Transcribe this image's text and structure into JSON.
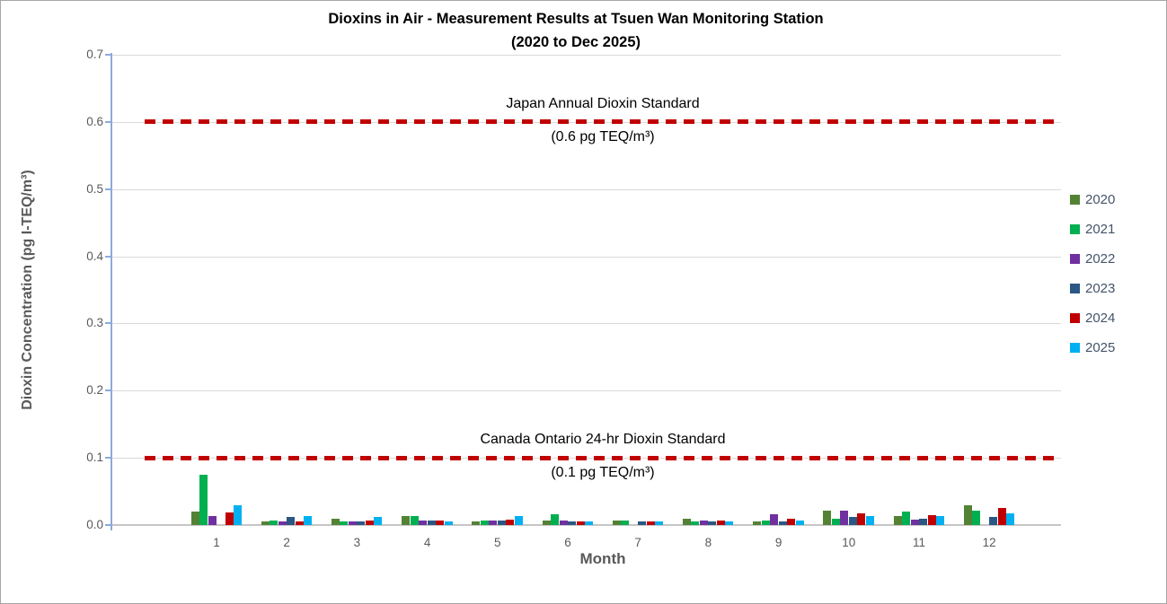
{
  "chart_data": {
    "type": "bar",
    "title_line1": "Dioxins in Air - Measurement Results at Tsuen Wan Monitoring Station",
    "title_line2": "(2020 to Dec 2025)",
    "xlabel": "Month",
    "ylabel": "Dioxin Concentration (pg I-TEQ/m³)",
    "ylim": [
      0,
      0.7
    ],
    "ytick_step": 0.1,
    "ytick_labels": [
      "0.0",
      "0.1",
      "0.2",
      "0.3",
      "0.4",
      "0.5",
      "0.6",
      "0.7"
    ],
    "grid": true,
    "legend_position": "right",
    "categories": [
      "1",
      "2",
      "3",
      "4",
      "5",
      "6",
      "7",
      "8",
      "9",
      "10",
      "11",
      "12"
    ],
    "series": [
      {
        "name": "2020",
        "color": "#548235",
        "values": [
          0.02,
          0.006,
          0.01,
          0.013,
          0.006,
          0.007,
          0.007,
          0.009,
          0.006,
          0.022,
          0.014,
          0.03
        ]
      },
      {
        "name": "2021",
        "color": "#00b050",
        "values": [
          0.075,
          0.007,
          0.006,
          0.013,
          0.007,
          0.016,
          0.007,
          0.006,
          0.007,
          0.01,
          0.02,
          0.021
        ]
      },
      {
        "name": "2022",
        "color": "#7030a0",
        "values": [
          0.013,
          0.005,
          0.006,
          0.007,
          0.007,
          0.007,
          null,
          0.007,
          0.016,
          0.021,
          0.008,
          null
        ]
      },
      {
        "name": "2023",
        "color": "#2a5784",
        "values": [
          null,
          0.012,
          0.006,
          0.007,
          0.007,
          0.006,
          0.006,
          0.005,
          0.005,
          0.012,
          0.01,
          0.012
        ]
      },
      {
        "name": "2024",
        "color": "#c00000",
        "values": [
          0.019,
          0.006,
          0.007,
          0.007,
          0.008,
          0.006,
          0.006,
          0.007,
          0.009,
          0.018,
          0.015,
          0.025
        ]
      },
      {
        "name": "2025",
        "color": "#00b0f0",
        "values": [
          0.029,
          0.014,
          0.012,
          0.005,
          0.013,
          0.006,
          0.006,
          0.005,
          0.007,
          0.013,
          0.013,
          0.017
        ]
      }
    ],
    "reference_lines": [
      {
        "value": 0.6,
        "color": "#c00000",
        "label_above": "Japan Annual Dioxin Standard",
        "label_below": "(0.6 pg TEQ/m³)"
      },
      {
        "value": 0.1,
        "color": "#c00000",
        "label_above": "Canada Ontario 24-hr Dioxin Standard",
        "label_below": "(0.1 pg TEQ/m³)"
      }
    ]
  }
}
